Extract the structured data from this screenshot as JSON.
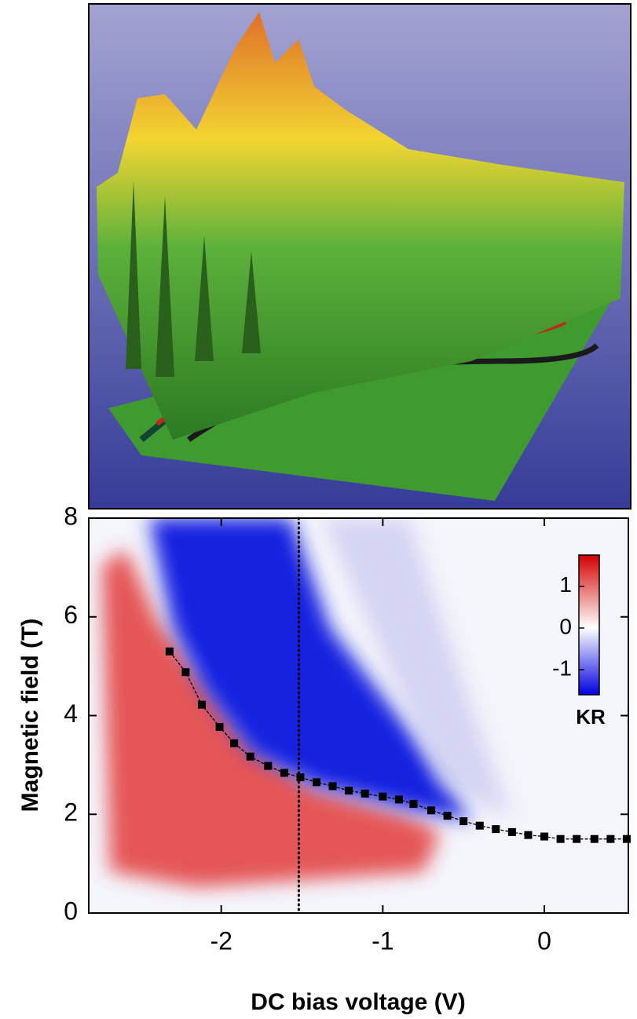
{
  "chart_data": {
    "type": "heatmap-line",
    "xlabel": "DC bias voltage (V)",
    "ylabel": "Magnetic field (T)",
    "xlim": [
      -2.82,
      0.52
    ],
    "xticks": [
      -2,
      -1,
      0
    ],
    "ylim": [
      0,
      8
    ],
    "yticks": [
      0,
      2,
      4,
      6,
      8
    ],
    "marker_x": -1.52,
    "series": [
      {
        "color": "#000000",
        "x": [
          -2.32,
          -2.22,
          -2.12,
          -2.01,
          -1.92,
          -1.82,
          -1.71,
          -1.61,
          -1.51,
          -1.41,
          -1.31,
          -1.21,
          -1.11,
          -1.0,
          -0.9,
          -0.81,
          -0.7,
          -0.6,
          -0.5,
          -0.4,
          -0.3,
          -0.2,
          -0.1,
          0.0,
          0.1,
          0.2,
          0.31,
          0.41,
          0.51
        ],
        "values": [
          5.3,
          4.88,
          4.22,
          3.77,
          3.44,
          3.17,
          2.98,
          2.84,
          2.75,
          2.65,
          2.57,
          2.48,
          2.42,
          2.36,
          2.3,
          2.21,
          2.08,
          1.97,
          1.86,
          1.77,
          1.7,
          1.64,
          1.58,
          1.55,
          1.5,
          1.5,
          1.5,
          1.5,
          1.5
        ]
      }
    ],
    "colorbar": {
      "label": "KR",
      "lim": [
        -1.6,
        1.75
      ],
      "ticks": [
        -1,
        0,
        1
      ]
    }
  }
}
